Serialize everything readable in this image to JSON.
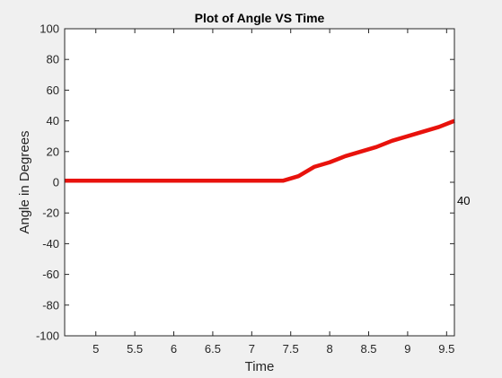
{
  "chart_data": {
    "type": "line",
    "title": "Plot of Angle VS Time",
    "xlabel": "Time",
    "ylabel": "Angle in Degrees",
    "xlim": [
      4.6,
      9.6
    ],
    "ylim": [
      -100,
      100
    ],
    "x_ticks": [
      5,
      5.5,
      6,
      6.5,
      7,
      7.5,
      8,
      8.5,
      9,
      9.5
    ],
    "x_tick_labels": [
      "5",
      "5.5",
      "6",
      "6.5",
      "7",
      "7.5",
      "8",
      "8.5",
      "9",
      "9.5"
    ],
    "y_ticks": [
      -100,
      -80,
      -60,
      -40,
      -20,
      0,
      20,
      40,
      60,
      80,
      100
    ],
    "y_tick_labels": [
      "-100",
      "-80",
      "-60",
      "-40",
      "-20",
      "0",
      "20",
      "40",
      "60",
      "80",
      "100"
    ],
    "grid": false,
    "series": [
      {
        "color": "#e8120c",
        "x": [
          4.6,
          5.0,
          5.5,
          6.0,
          6.5,
          7.0,
          7.4,
          7.6,
          7.8,
          8.0,
          8.2,
          8.4,
          8.6,
          8.8,
          9.0,
          9.2,
          9.4,
          9.6
        ],
        "y": [
          1,
          1,
          1,
          1,
          1,
          1,
          1,
          4,
          10,
          13,
          17,
          20,
          23,
          27,
          30,
          33,
          36,
          40
        ]
      }
    ],
    "annotations": [
      {
        "text": "40"
      }
    ]
  }
}
